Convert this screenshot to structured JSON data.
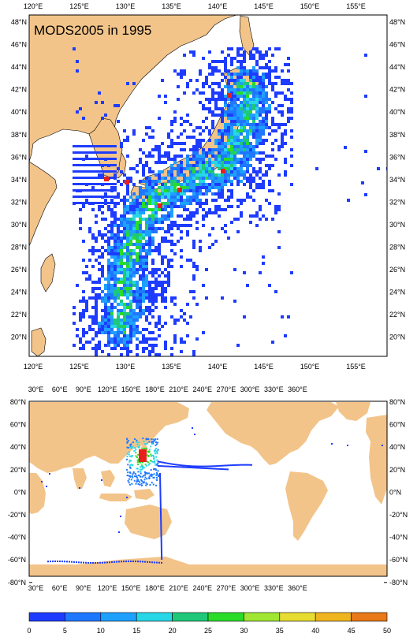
{
  "top_map": {
    "title": "MODS2005 in 1995",
    "x_ticks": [
      "120°E",
      "125°E",
      "130°E",
      "135°E",
      "140°E",
      "145°E",
      "150°E",
      "155°E"
    ],
    "y_ticks": [
      "48°N",
      "46°N",
      "44°N",
      "42°N",
      "40°N",
      "38°N",
      "36°N",
      "34°N",
      "32°N",
      "30°N",
      "28°N",
      "26°N",
      "24°N",
      "22°N",
      "20°N"
    ],
    "lon_range": [
      118.2,
      157.2
    ],
    "lat_range": [
      18.6,
      49.6
    ]
  },
  "bottom_map": {
    "x_ticks": [
      "30°E",
      "60°E",
      "90°E",
      "120°E",
      "150°E",
      "180°E",
      "210°E",
      "240°E",
      "270°E",
      "300°E",
      "330°E",
      "360°E"
    ],
    "y_ticks": [
      "80°N",
      "60°N",
      "40°N",
      "20°N",
      "0°N",
      "-20°N",
      "-40°N",
      "-60°N",
      "-80°N"
    ]
  },
  "colorbar": {
    "tick_labels": [
      "0",
      "5",
      "10",
      "15",
      "20",
      "25",
      "30",
      "35",
      "40",
      "45",
      "50"
    ],
    "colors": [
      "#1e3cff",
      "#1e78ff",
      "#1ea0ff",
      "#28d7e6",
      "#1ec878",
      "#28dc28",
      "#a0e632",
      "#e6dc32",
      "#f0b41e",
      "#e87818"
    ]
  },
  "colors": {
    "land": "#f2c48a",
    "ocean": "#ffffff",
    "high_density": "#e8201c"
  }
}
